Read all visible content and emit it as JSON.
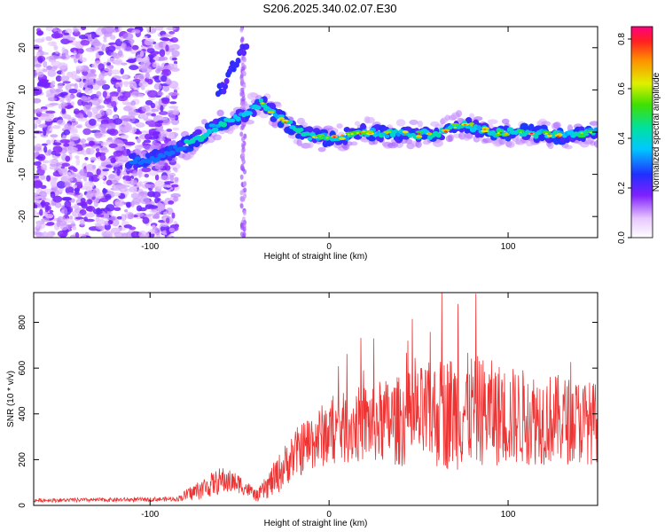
{
  "title": "S206.2025.340.02.07.E30",
  "chart_data": [
    {
      "type": "heatmap",
      "xlabel": "Height of straight line (km)",
      "ylabel": "Frequency (Hz)",
      "xlim": [
        -165,
        150
      ],
      "ylim": [
        -25,
        25
      ],
      "xticks": [
        -100,
        0,
        100
      ],
      "yticks": [
        -20,
        -10,
        0,
        10,
        20
      ],
      "colorbar": {
        "label": "Normalized spectral amplitude",
        "range": [
          0.0,
          0.85
        ],
        "ticks": [
          0.0,
          0.2,
          0.4,
          0.6,
          0.8
        ],
        "tick_labels": [
          "0.0",
          "0.2",
          "0.4",
          "0.6",
          "0.8"
        ]
      },
      "ridge": [
        {
          "x": -110,
          "y": -7
        },
        {
          "x": -95,
          "y": -6
        },
        {
          "x": -85,
          "y": -4
        },
        {
          "x": -75,
          "y": -2
        },
        {
          "x": -65,
          "y": 1
        },
        {
          "x": -55,
          "y": 3
        },
        {
          "x": -45,
          "y": 5
        },
        {
          "x": -38,
          "y": 7
        },
        {
          "x": -30,
          "y": 4
        },
        {
          "x": -20,
          "y": 1
        },
        {
          "x": -10,
          "y": -1
        },
        {
          "x": 0,
          "y": -1.5
        },
        {
          "x": 20,
          "y": 0
        },
        {
          "x": 40,
          "y": -0.5
        },
        {
          "x": 60,
          "y": -0.5
        },
        {
          "x": 75,
          "y": 2
        },
        {
          "x": 90,
          "y": 0
        },
        {
          "x": 110,
          "y": 0
        },
        {
          "x": 130,
          "y": -1
        },
        {
          "x": 150,
          "y": 0
        }
      ],
      "secondary_branch": [
        {
          "x": -60,
          "y": 10
        },
        {
          "x": -53,
          "y": 16
        },
        {
          "x": -47,
          "y": 20
        }
      ],
      "notes": "low-level noise dominates x < -90; narrow vertical noise streak near x = -48"
    },
    {
      "type": "line",
      "xlabel": "Height of straight line (km)",
      "ylabel": "SNR (10 * v/v)",
      "xlim": [
        -165,
        150
      ],
      "ylim": [
        0,
        930
      ],
      "xticks": [
        -100,
        0,
        100
      ],
      "yticks": [
        0,
        200,
        400,
        600,
        800
      ],
      "color": "#ee3333",
      "envelope": [
        {
          "x": -165,
          "y": 22
        },
        {
          "x": -110,
          "y": 25
        },
        {
          "x": -85,
          "y": 28
        },
        {
          "x": -75,
          "y": 60
        },
        {
          "x": -60,
          "y": 110
        },
        {
          "x": -50,
          "y": 95
        },
        {
          "x": -40,
          "y": 40
        },
        {
          "x": -30,
          "y": 120
        },
        {
          "x": -20,
          "y": 220
        },
        {
          "x": -10,
          "y": 280
        },
        {
          "x": 0,
          "y": 320
        },
        {
          "x": 10,
          "y": 340
        },
        {
          "x": 20,
          "y": 360
        },
        {
          "x": 40,
          "y": 370
        },
        {
          "x": 60,
          "y": 400
        },
        {
          "x": 80,
          "y": 420
        },
        {
          "x": 100,
          "y": 390
        },
        {
          "x": 120,
          "y": 380
        },
        {
          "x": 150,
          "y": 360
        }
      ],
      "spread": [
        {
          "x": -165,
          "s": 8
        },
        {
          "x": -85,
          "s": 10
        },
        {
          "x": -75,
          "s": 40
        },
        {
          "x": -60,
          "s": 60
        },
        {
          "x": -40,
          "s": 25
        },
        {
          "x": -30,
          "s": 80
        },
        {
          "x": -10,
          "s": 130
        },
        {
          "x": 10,
          "s": 160
        },
        {
          "x": 40,
          "s": 200
        },
        {
          "x": 70,
          "s": 260
        },
        {
          "x": 100,
          "s": 220
        },
        {
          "x": 150,
          "s": 180
        }
      ],
      "peaks": [
        {
          "x": 63,
          "y": 930
        },
        {
          "x": 82,
          "y": 925
        },
        {
          "x": 72,
          "y": 880
        },
        {
          "x": 25,
          "y": 730
        },
        {
          "x": 44,
          "y": 720
        }
      ]
    }
  ]
}
